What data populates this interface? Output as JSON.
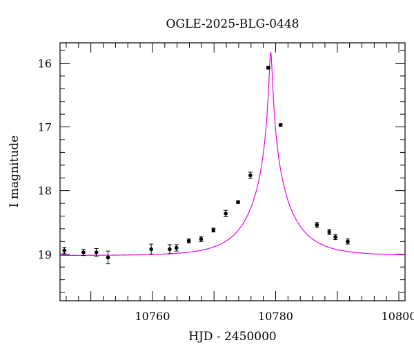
{
  "chart_data": {
    "type": "scatter",
    "title": "OGLE-2025-BLG-0448",
    "xlabel": "HJD - 2450000",
    "ylabel": "I magnitude",
    "xlim": [
      10745,
      10801
    ],
    "ylim": [
      19.73,
      15.68
    ],
    "y_inverted": true,
    "x_ticks": [
      10760,
      10780,
      10800
    ],
    "x_tick_labels": [
      "10760",
      "10780",
      "10800"
    ],
    "y_ticks": [
      16,
      17,
      18,
      19
    ],
    "y_tick_labels": [
      "16",
      "17",
      "18",
      "19"
    ],
    "grid": false,
    "legend": "none",
    "points": [
      {
        "x": 10745.7,
        "y": 18.94,
        "err": 0.05
      },
      {
        "x": 10748.8,
        "y": 18.97,
        "err": 0.05
      },
      {
        "x": 10750.9,
        "y": 18.97,
        "err": 0.06
      },
      {
        "x": 10752.8,
        "y": 19.05,
        "err": 0.1
      },
      {
        "x": 10759.8,
        "y": 18.92,
        "err": 0.08
      },
      {
        "x": 10762.8,
        "y": 18.92,
        "err": 0.07
      },
      {
        "x": 10763.9,
        "y": 18.9,
        "err": 0.05
      },
      {
        "x": 10765.9,
        "y": 18.79,
        "err": 0.03
      },
      {
        "x": 10767.9,
        "y": 18.76,
        "err": 0.04
      },
      {
        "x": 10769.9,
        "y": 18.62,
        "err": 0.03
      },
      {
        "x": 10771.9,
        "y": 18.36,
        "err": 0.05
      },
      {
        "x": 10773.9,
        "y": 18.18,
        "err": 0.02
      },
      {
        "x": 10775.9,
        "y": 17.76,
        "err": 0.05
      },
      {
        "x": 10778.8,
        "y": 16.07,
        "err": 0.02
      },
      {
        "x": 10780.8,
        "y": 16.97,
        "err": 0.02
      },
      {
        "x": 10786.7,
        "y": 18.54,
        "err": 0.04
      },
      {
        "x": 10788.7,
        "y": 18.65,
        "err": 0.04
      },
      {
        "x": 10789.7,
        "y": 18.73,
        "err": 0.04
      },
      {
        "x": 10791.7,
        "y": 18.8,
        "err": 0.04
      }
    ],
    "model": {
      "name": "",
      "color": "#ee00ee",
      "t0": 10779.2,
      "peak_mag": 15.82,
      "baseline_mag": 19.02
    },
    "point_color": "#000000"
  }
}
